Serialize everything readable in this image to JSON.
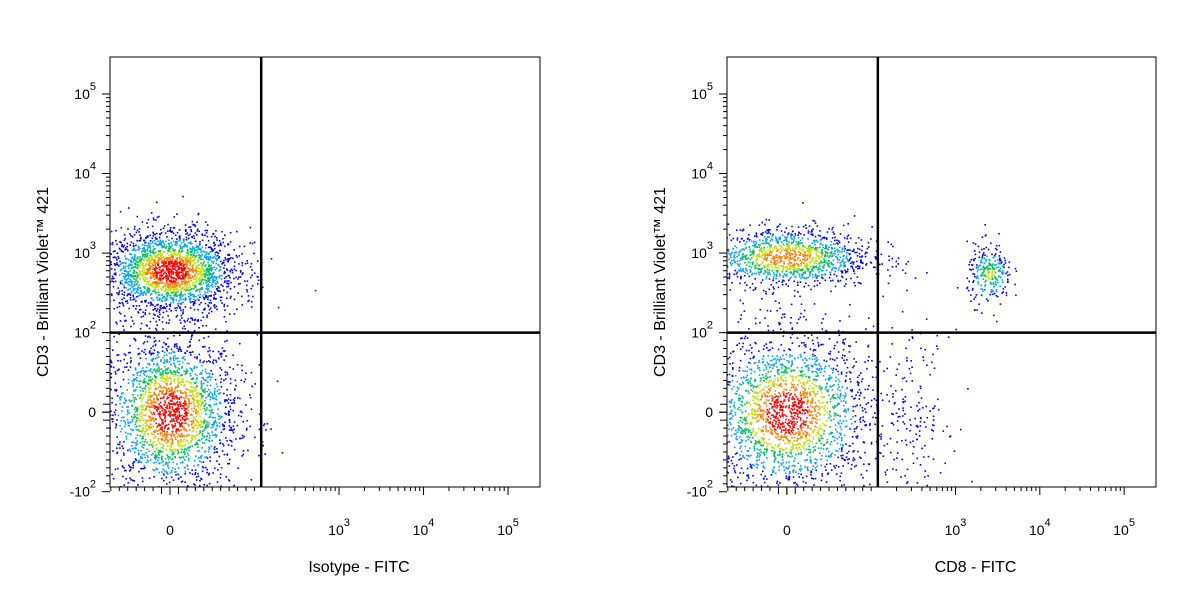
{
  "chart_data": [
    {
      "type": "scatter",
      "subtype": "flow-cytometry-density-dot-plot",
      "xlabel": "Isotype - FITC",
      "ylabel": "CD3 - Brilliant Violet™ 421",
      "x_scale": "biexponential",
      "y_scale": "biexponential",
      "x_ticks": [
        {
          "value": 0,
          "base": "0",
          "exp": ""
        },
        {
          "value": 1000,
          "base": "10",
          "exp": "3"
        },
        {
          "value": 10000,
          "base": "10",
          "exp": "4"
        },
        {
          "value": 100000,
          "base": "10",
          "exp": "5"
        }
      ],
      "y_ticks": [
        {
          "value": -100,
          "base": "-10",
          "exp": "2"
        },
        {
          "value": 0,
          "base": "0",
          "exp": ""
        },
        {
          "value": 100,
          "base": "10",
          "exp": "2"
        },
        {
          "value": 1000,
          "base": "10",
          "exp": "3"
        },
        {
          "value": 10000,
          "base": "10",
          "exp": "4"
        },
        {
          "value": 100000,
          "base": "10",
          "exp": "5"
        }
      ],
      "quadrant_gate": {
        "x": 120,
        "y": 100
      },
      "populations": [
        {
          "x_center": 0,
          "y_center": 0,
          "x_spread": 40,
          "y_spread": 50,
          "density": "high"
        },
        {
          "x_center": 0,
          "y_center": 600,
          "x_spread": 40,
          "y_spread": 500,
          "density": "high"
        }
      ]
    },
    {
      "type": "scatter",
      "subtype": "flow-cytometry-density-dot-plot",
      "xlabel": "CD8 - FITC",
      "ylabel": "CD3 - Brilliant Violet™ 421",
      "x_scale": "biexponential",
      "y_scale": "biexponential",
      "x_ticks": [
        {
          "value": 0,
          "base": "0",
          "exp": ""
        },
        {
          "value": 1000,
          "base": "10",
          "exp": "3"
        },
        {
          "value": 10000,
          "base": "10",
          "exp": "4"
        },
        {
          "value": 100000,
          "base": "10",
          "exp": "5"
        }
      ],
      "y_ticks": [
        {
          "value": -100,
          "base": "-10",
          "exp": "2"
        },
        {
          "value": 0,
          "base": "0",
          "exp": ""
        },
        {
          "value": 100,
          "base": "10",
          "exp": "2"
        },
        {
          "value": 1000,
          "base": "10",
          "exp": "3"
        },
        {
          "value": 10000,
          "base": "10",
          "exp": "4"
        },
        {
          "value": 100000,
          "base": "10",
          "exp": "5"
        }
      ],
      "quadrant_gate": {
        "x": 120,
        "y": 100
      },
      "populations": [
        {
          "x_center": 0,
          "y_center": 0,
          "x_spread": 50,
          "y_spread": 50,
          "density": "high"
        },
        {
          "x_center": 0,
          "y_center": 900,
          "x_spread": 50,
          "y_spread": 500,
          "density": "medium"
        },
        {
          "x_center": 2500,
          "y_center": 550,
          "x_spread": 900,
          "y_spread": 300,
          "density": "low"
        },
        {
          "x_center": 300,
          "y_center": 0,
          "x_spread": 200,
          "y_spread": 50,
          "density": "sparse"
        }
      ]
    }
  ],
  "colors": {
    "density_low": "#0000ff",
    "density_mid_low": "#00a0ff",
    "density_mid": "#00c060",
    "density_mid_high": "#c0e000",
    "density_high": "#ff8000",
    "density_peak": "#ff0000",
    "gate_line": "#000000",
    "frame": "#000000"
  }
}
